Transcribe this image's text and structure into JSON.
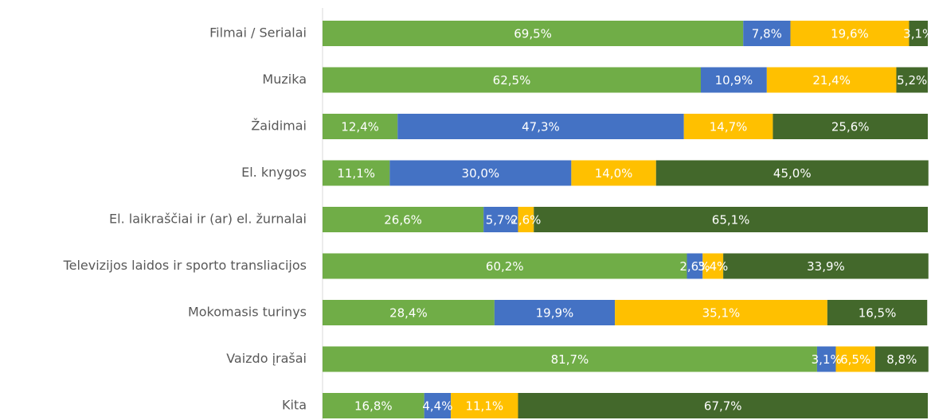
{
  "chart_data": {
    "type": "stacked-barh",
    "categories": [
      "Filmai / Serialai",
      "Muzika",
      "Žaidimai",
      "El. knygos",
      "El. laikraščiai ir (ar) el. žurnalai",
      "Televizijos laidos ir sporto transliacijos",
      "Mokomasis turinys",
      "Vaizdo įrašai",
      "Kita"
    ],
    "xlim": [
      0,
      100
    ],
    "series": [
      {
        "color": "#70ad47",
        "values": [
          69.5,
          62.5,
          12.4,
          11.1,
          26.6,
          60.2,
          28.4,
          81.7,
          16.8
        ],
        "value_labels": [
          "69,5%",
          "62,5%",
          "12,4%",
          "11,1%",
          "26,6%",
          "60,2%",
          "28,4%",
          "81,7%",
          "16,8%"
        ]
      },
      {
        "color": "#4472c4",
        "values": [
          7.8,
          10.9,
          47.3,
          30.0,
          5.7,
          2.6,
          19.9,
          3.1,
          4.4
        ],
        "value_labels": [
          "7,8%",
          "10,9%",
          "47,3%",
          "30,0%",
          "5,7%",
          "2,6%",
          "19,9%",
          "3,1%",
          "4,4%"
        ]
      },
      {
        "color": "#ffc000",
        "values": [
          19.6,
          21.4,
          14.7,
          14.0,
          2.6,
          3.4,
          35.1,
          6.5,
          11.1
        ],
        "value_labels": [
          "19,6%",
          "21,4%",
          "14,7%",
          "14,0%",
          "2,6%",
          "3,4%",
          "35,1%",
          "6,5%",
          "11,1%"
        ]
      },
      {
        "color": "#43682b",
        "values": [
          3.1,
          5.2,
          25.6,
          45.0,
          65.1,
          33.9,
          16.5,
          8.8,
          67.7
        ],
        "value_labels": [
          "3,1%",
          "5,2%",
          "25,6%",
          "45,0%",
          "65,1%",
          "33,9%",
          "16,5%",
          "8,8%",
          "67,7%"
        ]
      }
    ]
  }
}
